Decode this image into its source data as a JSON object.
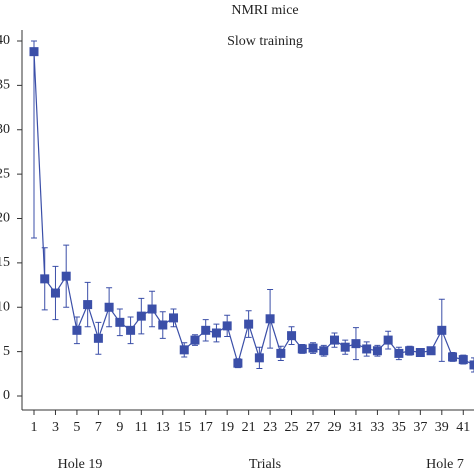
{
  "chart_data": {
    "type": "line",
    "title": "NMRI mice",
    "subtitle": "Slow training",
    "x_label": "Trials",
    "annotations": [
      "Hole 19",
      "Hole 7"
    ],
    "x": [
      1,
      2,
      3,
      4,
      5,
      6,
      7,
      8,
      9,
      10,
      11,
      12,
      13,
      14,
      15,
      16,
      17,
      18,
      19,
      20,
      21,
      22,
      23,
      24,
      25,
      26,
      27,
      28,
      29,
      30,
      31,
      32,
      33,
      34,
      35,
      36,
      37,
      38,
      39,
      40,
      41,
      42
    ],
    "series": [
      {
        "color": "#3b4fa8",
        "values": [
          38.8,
          13.2,
          11.6,
          13.5,
          7.4,
          10.3,
          6.5,
          10.0,
          8.3,
          7.4,
          9.0,
          9.8,
          8.0,
          8.8,
          5.2,
          6.3,
          7.4,
          7.1,
          7.9,
          3.7,
          8.1,
          4.3,
          8.7,
          4.8,
          6.8,
          5.3,
          5.4,
          5.1,
          6.3,
          5.5,
          5.9,
          5.3,
          5.1,
          6.3,
          4.8,
          5.1,
          4.9,
          5.1,
          7.4,
          4.4,
          4.1,
          3.5
        ],
        "errors": [
          21,
          3.5,
          3,
          3.5,
          1.5,
          2.5,
          1.8,
          2.2,
          1.5,
          1.5,
          2,
          2,
          1.5,
          1,
          0.8,
          0.6,
          1.2,
          1,
          1.2,
          0.5,
          1.5,
          1.2,
          3.3,
          0.8,
          1,
          0.5,
          0.6,
          0.6,
          0.8,
          0.8,
          1.8,
          0.8,
          0.6,
          1,
          0.7,
          0.5,
          0.4,
          0.4,
          3.5,
          0.5,
          0.5,
          0.8
        ]
      }
    ],
    "xlim": [
      1,
      42
    ],
    "xticks": [
      1,
      3,
      5,
      7,
      9,
      11,
      13,
      15,
      17,
      19,
      21,
      23,
      25,
      27,
      29,
      31,
      33,
      35,
      37,
      39,
      41
    ],
    "ylim": [
      0,
      40
    ],
    "yticks": [
      0,
      5,
      10,
      15,
      20,
      25,
      30,
      35,
      40
    ]
  }
}
